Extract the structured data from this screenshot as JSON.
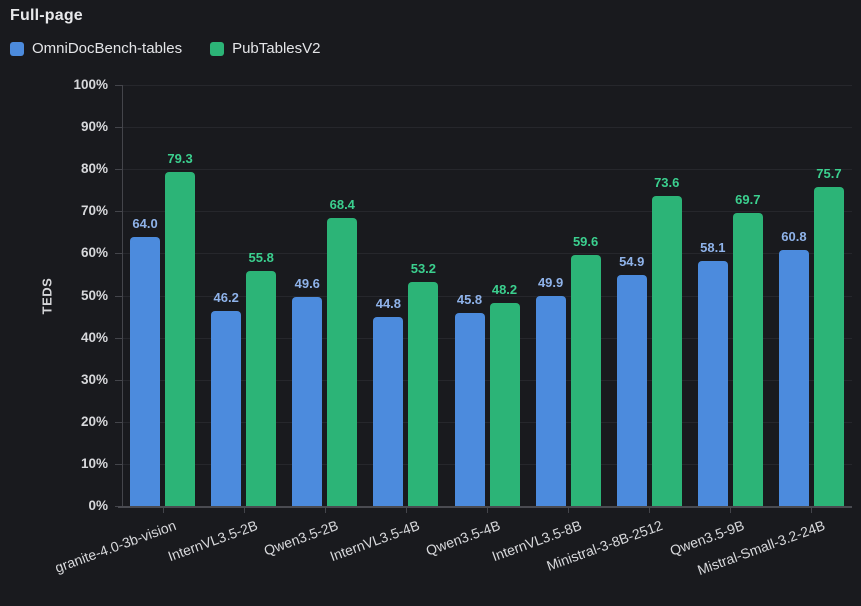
{
  "chart_data": {
    "type": "bar",
    "title": "Full-page",
    "ylabel": "TEDS",
    "xlabel": "",
    "ylim": [
      0,
      100
    ],
    "yticks": [
      "100%",
      "90%",
      "80%",
      "70%",
      "60%",
      "50%",
      "40%",
      "30%",
      "20%",
      "10%",
      "0%"
    ],
    "grid": true,
    "legend_position": "top-left",
    "value_decimals": 1,
    "categories": [
      "granite-4.0-3b-vision",
      "InternVL3.5-2B",
      "Qwen3.5-2B",
      "InternVL3.5-4B",
      "Qwen3.5-4B",
      "InternVL3.5-8B",
      "Ministral-3-8B-2512",
      "Qwen3.5-9B",
      "Mistral-Small-3.2-24B"
    ],
    "series": [
      {
        "name": "OmniDocBench-tables",
        "color": "#4c8bdd",
        "label_color": "#8fb3ea",
        "values": [
          64.0,
          46.2,
          49.6,
          44.8,
          45.8,
          49.9,
          54.9,
          58.1,
          60.8
        ]
      },
      {
        "name": "PubTablesV2",
        "color": "#2cb477",
        "label_color": "#3bd08f",
        "values": [
          79.3,
          55.8,
          68.4,
          53.2,
          48.2,
          59.6,
          73.6,
          69.7,
          75.7
        ]
      }
    ]
  },
  "colors": {
    "background": "#191a1e",
    "gridline": "#26272c",
    "axis": "#45464c",
    "y_tick_label": "#d7d8db",
    "x_tick_label": "#d8d9dc",
    "title": "#e8e9eb",
    "legend_text": "#e4e5e8"
  }
}
